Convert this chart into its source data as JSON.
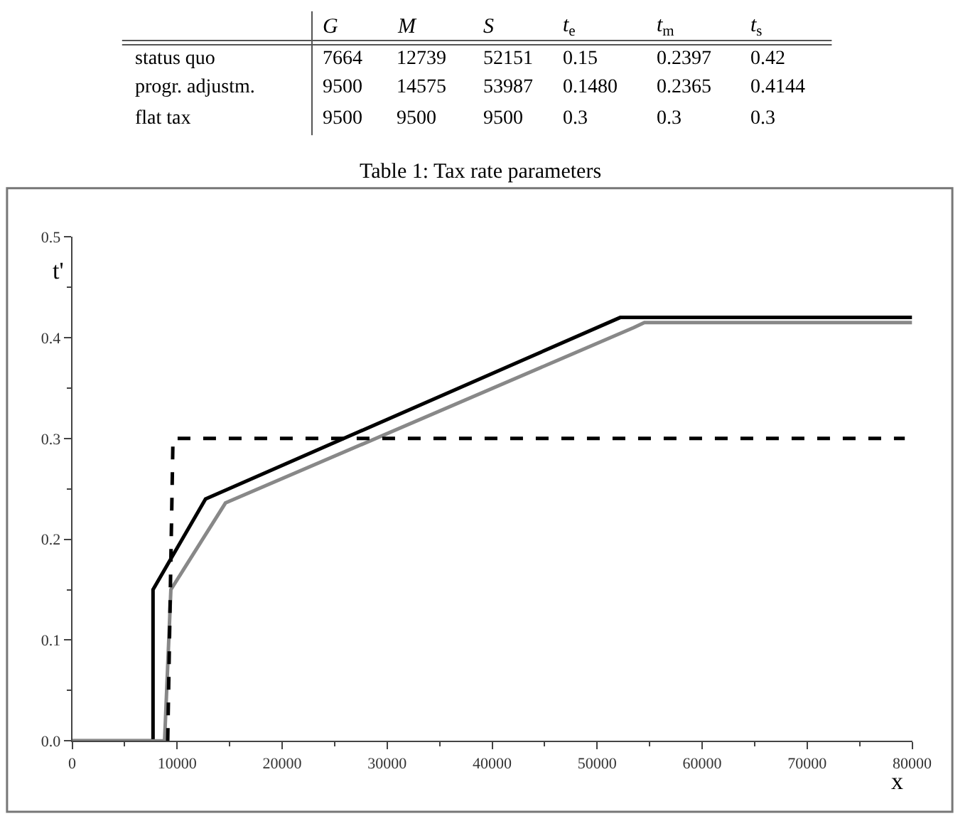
{
  "chart_data": [
    {
      "type": "other",
      "categories": [
        "G",
        "M",
        "S",
        "t$_{e}$",
        "t$_{m}$",
        "t$_{s}$"
      ],
      "y_categories": [
        "status quo",
        "progr. adjustm.",
        "flat tax"
      ],
      "cell_labels": [
        [
          "7664",
          "12739",
          "52151",
          "0.15",
          "0.2397",
          "0.42"
        ],
        [
          "9500",
          "14575",
          "53987",
          "0.1480",
          "0.2365",
          "0.4144"
        ],
        [
          "9500",
          "9500",
          "9500",
          "0.3",
          "0.3",
          "0.3"
        ]
      ],
      "annotations": [
        "Table 1: Tax rate parameters"
      ]
    },
    {
      "type": "line",
      "xlabel": "x",
      "ylabel": "t'",
      "xlim": [
        0,
        80000
      ],
      "ylim": [
        0,
        0.5
      ],
      "xticks": [
        0,
        10000,
        20000,
        30000,
        40000,
        50000,
        60000,
        70000,
        80000
      ],
      "yticks": [
        {
          "value": 0,
          "label": "0.0"
        },
        0.1,
        0.2,
        0.3,
        0.4,
        0.5
      ],
      "marker": "none",
      "series": [
        {
          "color": "#000000",
          "line_style": "solid",
          "x": [
            0,
            7700,
            7700,
            12700,
            52200,
            80000
          ],
          "values": [
            0,
            0,
            0.15,
            0.24,
            0.42,
            0.42
          ]
        },
        {
          "color": "#888888",
          "line_style": "solid",
          "x": [
            0,
            8800,
            9400,
            14600,
            53500,
            54500,
            80000
          ],
          "values": [
            0,
            0,
            0.15,
            0.236,
            0.41,
            0.415,
            0.415
          ]
        },
        {
          "color": "#000000",
          "line_style": "dashed",
          "x": [
            9100,
            9600,
            79300
          ],
          "values": [
            0,
            0.3,
            0.3
          ]
        }
      ]
    }
  ]
}
